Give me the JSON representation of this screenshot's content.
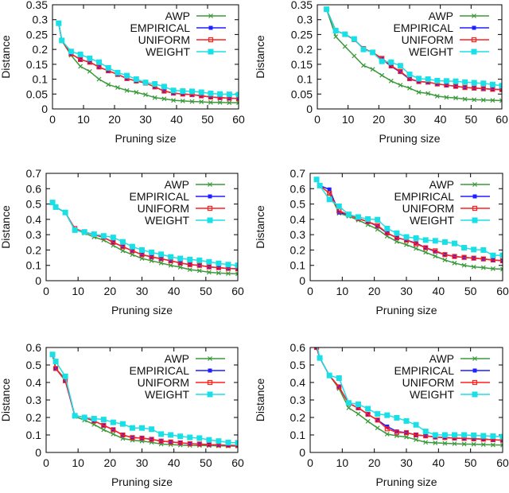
{
  "series_style": {
    "AWP": {
      "color": "#3a9a3a",
      "marker": "cross"
    },
    "EMPIRICAL": {
      "color": "#1f1fff",
      "marker": "filled-square-small"
    },
    "UNIFORM": {
      "color": "#ff1f1f",
      "marker": "open-square"
    },
    "WEIGHT": {
      "color": "#19e0e6",
      "marker": "filled-square"
    }
  },
  "chart_data": [
    {
      "type": "line",
      "xlabel": "Pruning size",
      "ylabel": "Distance",
      "xlim": [
        0,
        60
      ],
      "ylim": [
        0,
        0.35
      ],
      "xticks": [
        0,
        10,
        20,
        30,
        40,
        50,
        60
      ],
      "yticks": [
        0,
        0.05,
        0.1,
        0.15,
        0.2,
        0.25,
        0.3,
        0.35
      ],
      "ytick_labels": [
        "0",
        "0.05",
        "0.1",
        "0.15",
        "0.2",
        "0.25",
        "0.3",
        "0.35"
      ],
      "legend": "top-right",
      "grid": false,
      "x": [
        2,
        3,
        6,
        9,
        12,
        15,
        18,
        21,
        24,
        27,
        30,
        33,
        36,
        39,
        42,
        45,
        48,
        51,
        54,
        57,
        60
      ],
      "series": [
        {
          "name": "AWP",
          "values": [
            0.288,
            0.23,
            0.18,
            0.143,
            0.126,
            0.1,
            0.082,
            0.072,
            0.062,
            0.056,
            0.048,
            0.038,
            0.034,
            0.029,
            0.027,
            0.025,
            0.024,
            0.022,
            0.022,
            0.021,
            0.021
          ]
        },
        {
          "name": "EMPIRICAL",
          "values": [
            0.288,
            0.23,
            0.185,
            0.166,
            0.157,
            0.141,
            0.128,
            0.116,
            0.102,
            0.094,
            0.087,
            0.074,
            0.06,
            0.053,
            0.05,
            0.048,
            0.044,
            0.04,
            0.038,
            0.036,
            0.035
          ]
        },
        {
          "name": "UNIFORM",
          "values": [
            0.288,
            0.23,
            0.185,
            0.166,
            0.157,
            0.141,
            0.128,
            0.116,
            0.102,
            0.094,
            0.087,
            0.074,
            0.06,
            0.053,
            0.05,
            0.048,
            0.044,
            0.04,
            0.038,
            0.036,
            0.035
          ]
        },
        {
          "name": "WEIGHT",
          "values": [
            0.288,
            0.23,
            0.193,
            0.183,
            0.17,
            0.157,
            0.138,
            0.122,
            0.112,
            0.1,
            0.089,
            0.084,
            0.075,
            0.062,
            0.06,
            0.059,
            0.056,
            0.052,
            0.05,
            0.049,
            0.048
          ]
        }
      ]
    },
    {
      "type": "line",
      "xlabel": "Pruning size",
      "ylabel": "Distance",
      "xlim": [
        0,
        60
      ],
      "ylim": [
        0,
        0.35
      ],
      "xticks": [
        0,
        10,
        20,
        30,
        40,
        50,
        60
      ],
      "yticks": [
        0,
        0.05,
        0.1,
        0.15,
        0.2,
        0.25,
        0.3,
        0.35
      ],
      "ytick_labels": [
        "0",
        "0.05",
        "0.1",
        "0.15",
        "0.2",
        "0.25",
        "0.3",
        "0.35"
      ],
      "legend": "top-right",
      "grid": false,
      "x": [
        3,
        6,
        9,
        12,
        15,
        18,
        21,
        24,
        27,
        30,
        33,
        36,
        39,
        42,
        45,
        48,
        51,
        54,
        57,
        60
      ],
      "series": [
        {
          "name": "AWP",
          "values": [
            0.335,
            0.243,
            0.21,
            0.178,
            0.146,
            0.133,
            0.113,
            0.094,
            0.08,
            0.07,
            0.056,
            0.052,
            0.043,
            0.039,
            0.037,
            0.033,
            0.031,
            0.03,
            0.029,
            0.028
          ]
        },
        {
          "name": "EMPIRICAL",
          "values": [
            0.335,
            0.263,
            0.251,
            0.233,
            0.203,
            0.19,
            0.168,
            0.143,
            0.124,
            0.1,
            0.092,
            0.09,
            0.084,
            0.08,
            0.076,
            0.072,
            0.07,
            0.068,
            0.066,
            0.065
          ]
        },
        {
          "name": "UNIFORM",
          "values": [
            0.335,
            0.263,
            0.251,
            0.233,
            0.203,
            0.19,
            0.17,
            0.145,
            0.126,
            0.102,
            0.092,
            0.09,
            0.084,
            0.08,
            0.076,
            0.072,
            0.07,
            0.068,
            0.066,
            0.065
          ]
        },
        {
          "name": "WEIGHT",
          "values": [
            0.335,
            0.263,
            0.251,
            0.235,
            0.2,
            0.19,
            0.16,
            0.157,
            0.145,
            0.116,
            0.102,
            0.1,
            0.095,
            0.094,
            0.093,
            0.09,
            0.088,
            0.086,
            0.082,
            0.078
          ]
        }
      ]
    },
    {
      "type": "line",
      "xlabel": "Pruning size",
      "ylabel": "Distance",
      "xlim": [
        0,
        60
      ],
      "ylim": [
        0,
        0.7
      ],
      "xticks": [
        0,
        10,
        20,
        30,
        40,
        50,
        60
      ],
      "yticks": [
        0,
        0.1,
        0.2,
        0.3,
        0.4,
        0.5,
        0.6,
        0.7
      ],
      "ytick_labels": [
        "0",
        "0.1",
        "0.2",
        "0.3",
        "0.4",
        "0.5",
        "0.6",
        "0.7"
      ],
      "legend": "top-right",
      "grid": false,
      "x": [
        2,
        3,
        6,
        9,
        12,
        15,
        18,
        21,
        24,
        27,
        30,
        33,
        36,
        39,
        42,
        45,
        48,
        51,
        54,
        57,
        60
      ],
      "series": [
        {
          "name": "AWP",
          "values": [
            0.51,
            0.48,
            0.445,
            0.335,
            0.31,
            0.285,
            0.265,
            0.23,
            0.195,
            0.17,
            0.145,
            0.13,
            0.115,
            0.1,
            0.088,
            0.072,
            0.065,
            0.055,
            0.05,
            0.047,
            0.045
          ]
        },
        {
          "name": "EMPIRICAL",
          "values": [
            0.51,
            0.48,
            0.445,
            0.33,
            0.318,
            0.3,
            0.283,
            0.25,
            0.222,
            0.195,
            0.17,
            0.155,
            0.143,
            0.13,
            0.115,
            0.105,
            0.1,
            0.09,
            0.085,
            0.08,
            0.078
          ]
        },
        {
          "name": "UNIFORM",
          "values": [
            0.51,
            0.48,
            0.445,
            0.34,
            0.318,
            0.3,
            0.283,
            0.25,
            0.222,
            0.195,
            0.17,
            0.155,
            0.143,
            0.13,
            0.115,
            0.105,
            0.1,
            0.09,
            0.085,
            0.08,
            0.078
          ]
        },
        {
          "name": "WEIGHT",
          "values": [
            0.51,
            0.48,
            0.445,
            0.33,
            0.318,
            0.303,
            0.292,
            0.282,
            0.253,
            0.222,
            0.2,
            0.185,
            0.172,
            0.155,
            0.145,
            0.138,
            0.133,
            0.123,
            0.113,
            0.105,
            0.1
          ]
        }
      ]
    },
    {
      "type": "line",
      "xlabel": "Pruning size",
      "ylabel": "Distance",
      "xlim": [
        0,
        60
      ],
      "ylim": [
        0,
        0.7
      ],
      "xticks": [
        0,
        10,
        20,
        30,
        40,
        50,
        60
      ],
      "yticks": [
        0,
        0.1,
        0.2,
        0.3,
        0.4,
        0.5,
        0.6,
        0.7
      ],
      "ytick_labels": [
        "0",
        "0.1",
        "0.2",
        "0.3",
        "0.4",
        "0.5",
        "0.6",
        "0.7"
      ],
      "legend": "top-right",
      "grid": false,
      "x": [
        2,
        3,
        6,
        9,
        12,
        15,
        18,
        21,
        24,
        27,
        30,
        33,
        36,
        39,
        42,
        45,
        48,
        51,
        54,
        57,
        60
      ],
      "series": [
        {
          "name": "AWP",
          "values": [
            0.66,
            0.62,
            0.57,
            0.44,
            0.42,
            0.395,
            0.365,
            0.335,
            0.29,
            0.255,
            0.235,
            0.21,
            0.185,
            0.16,
            0.135,
            0.115,
            0.1,
            0.09,
            0.085,
            0.078,
            0.075
          ]
        },
        {
          "name": "EMPIRICAL",
          "values": [
            0.66,
            0.62,
            0.595,
            0.445,
            0.43,
            0.405,
            0.385,
            0.355,
            0.31,
            0.28,
            0.265,
            0.245,
            0.215,
            0.19,
            0.17,
            0.158,
            0.152,
            0.147,
            0.142,
            0.135,
            0.13
          ]
        },
        {
          "name": "UNIFORM",
          "values": [
            0.66,
            0.62,
            0.57,
            0.455,
            0.43,
            0.405,
            0.385,
            0.36,
            0.312,
            0.28,
            0.265,
            0.24,
            0.215,
            0.195,
            0.17,
            0.158,
            0.152,
            0.147,
            0.142,
            0.135,
            0.13
          ]
        },
        {
          "name": "WEIGHT",
          "values": [
            0.66,
            0.62,
            0.53,
            0.485,
            0.432,
            0.415,
            0.402,
            0.398,
            0.34,
            0.31,
            0.285,
            0.278,
            0.265,
            0.26,
            0.252,
            0.243,
            0.215,
            0.203,
            0.2,
            0.165,
            0.165
          ]
        }
      ]
    },
    {
      "type": "line",
      "xlabel": "Pruning size",
      "ylabel": "Distance",
      "xlim": [
        0,
        60
      ],
      "ylim": [
        0,
        0.6
      ],
      "xticks": [
        0,
        10,
        20,
        30,
        40,
        50,
        60
      ],
      "yticks": [
        0,
        0.1,
        0.2,
        0.3,
        0.4,
        0.5,
        0.6
      ],
      "ytick_labels": [
        "0",
        "0.1",
        "0.2",
        "0.3",
        "0.4",
        "0.5",
        "0.6"
      ],
      "legend": "top-right",
      "grid": false,
      "x": [
        2,
        3,
        6,
        9,
        12,
        15,
        18,
        21,
        24,
        27,
        30,
        33,
        36,
        39,
        42,
        45,
        48,
        51,
        54,
        57,
        60
      ],
      "series": [
        {
          "name": "AWP",
          "values": [
            0.56,
            0.48,
            0.42,
            0.205,
            0.185,
            0.16,
            0.13,
            0.105,
            0.08,
            0.07,
            0.065,
            0.058,
            0.048,
            0.045,
            0.042,
            0.04,
            0.04,
            0.039,
            0.038,
            0.037,
            0.036
          ]
        },
        {
          "name": "EMPIRICAL",
          "values": [
            0.56,
            0.48,
            0.41,
            0.21,
            0.2,
            0.18,
            0.155,
            0.13,
            0.1,
            0.085,
            0.082,
            0.075,
            0.065,
            0.06,
            0.055,
            0.05,
            0.048,
            0.045,
            0.043,
            0.041,
            0.04
          ]
        },
        {
          "name": "UNIFORM",
          "values": [
            0.56,
            0.48,
            0.41,
            0.21,
            0.2,
            0.18,
            0.155,
            0.13,
            0.1,
            0.085,
            0.082,
            0.075,
            0.065,
            0.06,
            0.055,
            0.05,
            0.048,
            0.045,
            0.043,
            0.041,
            0.04
          ]
        },
        {
          "name": "WEIGHT",
          "values": [
            0.56,
            0.52,
            0.435,
            0.21,
            0.2,
            0.193,
            0.188,
            0.172,
            0.163,
            0.14,
            0.14,
            0.133,
            0.105,
            0.1,
            0.092,
            0.086,
            0.082,
            0.072,
            0.065,
            0.057,
            0.055
          ]
        }
      ]
    },
    {
      "type": "line",
      "xlabel": "Pruning size",
      "ylabel": "Distance",
      "xlim": [
        0,
        60
      ],
      "ylim": [
        0,
        0.6
      ],
      "xticks": [
        0,
        10,
        20,
        30,
        40,
        50,
        60
      ],
      "yticks": [
        0,
        0.1,
        0.2,
        0.3,
        0.4,
        0.5,
        0.6
      ],
      "ytick_labels": [
        "0",
        "0.1",
        "0.2",
        "0.3",
        "0.4",
        "0.5",
        "0.6"
      ],
      "legend": "top-right",
      "grid": false,
      "x": [
        2,
        3,
        6,
        9,
        12,
        15,
        18,
        21,
        24,
        27,
        30,
        33,
        36,
        39,
        42,
        45,
        48,
        51,
        54,
        57,
        60
      ],
      "series": [
        {
          "name": "AWP",
          "values": [
            0.6,
            0.54,
            0.44,
            0.365,
            0.255,
            0.22,
            0.178,
            0.14,
            0.105,
            0.095,
            0.088,
            0.073,
            0.058,
            0.055,
            0.052,
            0.05,
            0.048,
            0.047,
            0.045,
            0.043,
            0.042
          ]
        },
        {
          "name": "EMPIRICAL",
          "values": [
            0.6,
            0.54,
            0.44,
            0.375,
            0.28,
            0.255,
            0.218,
            0.185,
            0.148,
            0.12,
            0.113,
            0.1,
            0.095,
            0.088,
            0.085,
            0.082,
            0.08,
            0.078,
            0.076,
            0.073,
            0.07
          ]
        },
        {
          "name": "UNIFORM",
          "values": [
            0.6,
            0.54,
            0.44,
            0.375,
            0.28,
            0.255,
            0.218,
            0.185,
            0.135,
            0.115,
            0.113,
            0.1,
            0.095,
            0.088,
            0.085,
            0.082,
            0.08,
            0.078,
            0.076,
            0.073,
            0.07
          ]
        },
        {
          "name": "WEIGHT",
          "values": [
            0.62,
            0.54,
            0.44,
            0.425,
            0.283,
            0.275,
            0.25,
            0.22,
            0.213,
            0.198,
            0.18,
            0.158,
            0.12,
            0.1,
            0.1,
            0.1,
            0.1,
            0.098,
            0.095,
            0.093,
            0.09
          ]
        }
      ]
    }
  ]
}
